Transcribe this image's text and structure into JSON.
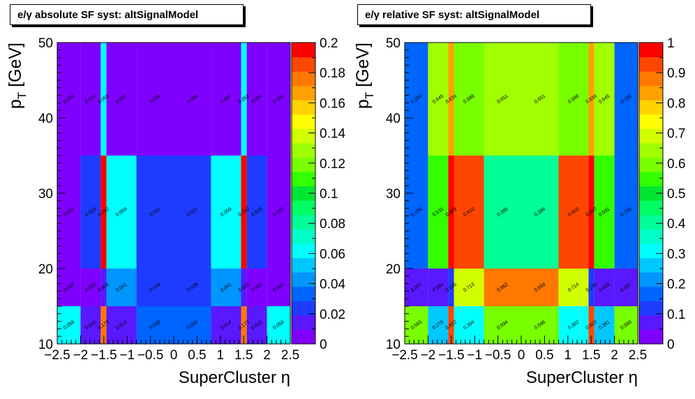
{
  "chart_data": [
    {
      "type": "heatmap",
      "title": "e/γ absolute SF syst: altSignalModel",
      "xlabel": "SuperCluster  η",
      "ylabel": "p_T [GeV]",
      "xlim": [
        -2.5,
        2.5
      ],
      "ylim": [
        10,
        50
      ],
      "zlim": [
        0,
        0.2
      ],
      "x_ticks": [
        "-2.5",
        "-2",
        "-1.5",
        "-1",
        "-0.5",
        "0",
        "0.5",
        "1",
        "1.5",
        "2",
        "2.5"
      ],
      "y_ticks": [
        "10",
        "20",
        "30",
        "40",
        "50"
      ],
      "z_ticks": [
        "0",
        "0.02",
        "0.04",
        "0.06",
        "0.08",
        "0.1",
        "0.12",
        "0.14",
        "0.16",
        "0.18",
        "0.2"
      ],
      "x_edges": [
        -2.5,
        -2.0,
        -1.566,
        -1.4442,
        -0.8,
        0.0,
        0.8,
        1.4442,
        1.566,
        2.0,
        2.5
      ],
      "y_edges": [
        10,
        15,
        20,
        35,
        50
      ],
      "values": [
        [
          0.058,
          0.012,
          0.173,
          0.014,
          0.033,
          0.033,
          0.014,
          0.173,
          0.012,
          0.058
        ],
        [
          0.002,
          0.003,
          0.016,
          0.041,
          0.028,
          0.028,
          0.041,
          0.016,
          0.003,
          0.002
        ],
        [
          0.007,
          0.023,
          0.282,
          0.059,
          0.021,
          0.021,
          0.059,
          0.282,
          0.023,
          0.007
        ],
        [
          0.002,
          0.007,
          0.058,
          0.007,
          0.005,
          0.005,
          0.007,
          0.058,
          0.007,
          0.002
        ]
      ],
      "labels": [
        [
          "0.058",
          "0.012",
          "0.173",
          "0.014",
          "0.033",
          "0.033",
          "0.014",
          "0.173",
          "0.012",
          "0.058"
        ],
        [
          "0.002",
          "0.003",
          "0.016",
          "0.041",
          "0.028",
          "0.028",
          "0.041",
          "0.016",
          "0.003",
          "0.002"
        ],
        [
          "0.007",
          "0.023",
          "0.282",
          "0.059",
          "0.021",
          "0.021",
          "0.059",
          "0.282",
          "0.023",
          "0.007"
        ],
        [
          "0.002",
          "0.007",
          "0.058",
          "0.007",
          "0.005",
          "0.005",
          "0.007",
          "0.058",
          "0.007",
          "0.002"
        ]
      ]
    },
    {
      "type": "heatmap",
      "title": "e/γ relative SF syst: altSignalModel",
      "xlabel": "SuperCluster  η",
      "ylabel": "p_T [GeV]",
      "xlim": [
        -2.5,
        2.5
      ],
      "ylim": [
        10,
        50
      ],
      "zlim": [
        0,
        1
      ],
      "x_ticks": [
        "-2.5",
        "-2",
        "-1.5",
        "-1",
        "-0.5",
        "0",
        "0.5",
        "1",
        "1.5",
        "2",
        "2.5"
      ],
      "y_ticks": [
        "10",
        "20",
        "30",
        "40",
        "50"
      ],
      "z_ticks": [
        "0",
        "0.1",
        "0.2",
        "0.3",
        "0.4",
        "0.5",
        "0.6",
        "0.7",
        "0.8",
        "0.9",
        "1"
      ],
      "x_edges": [
        -2.5,
        -2.0,
        -1.566,
        -1.4442,
        -0.8,
        0.0,
        0.8,
        1.4442,
        1.566,
        2.0,
        2.5
      ],
      "y_edges": [
        10,
        15,
        20,
        35,
        50
      ],
      "values": [
        [
          0.593,
          0.278,
          0.922,
          0.304,
          0.594,
          0.596,
          0.302,
          0.922,
          0.281,
          0.588
        ],
        [
          0.057,
          0.084,
          0.135,
          0.713,
          0.862,
          0.859,
          0.714,
          0.135,
          0.083,
          0.057
        ],
        [
          0.156,
          0.531,
          0.969,
          0.91,
          0.386,
          0.386,
          0.91,
          0.967,
          0.531,
          0.156
        ],
        [
          0.156,
          0.645,
          0.834,
          0.588,
          0.651,
          0.651,
          0.588,
          0.834,
          0.645,
          0.156
        ]
      ],
      "labels": [
        [
          "0.593",
          "0.278",
          "0.922",
          "0.304",
          "0.594",
          "0.596",
          "0.302",
          "0.922",
          "0.281",
          "0.588"
        ],
        [
          "0.057",
          "0.084",
          "0.135",
          "0.713",
          "0.862",
          "0.859",
          "0.714",
          "0.135",
          "0.083",
          "0.057"
        ],
        [
          "0.156",
          "0.531",
          "0.969",
          "0.910",
          "0.386",
          "0.386",
          "0.910",
          "0.967",
          "0.531",
          "0.156"
        ],
        [
          "0.156",
          "0.645",
          "0.834",
          "0.588",
          "0.651",
          "0.651",
          "0.588",
          "0.834",
          "0.645",
          "0.156"
        ]
      ]
    }
  ],
  "palette": [
    "#7f00ff",
    "#5a18ff",
    "#1e3cff",
    "#0064ff",
    "#0096ff",
    "#00c8ff",
    "#00ffff",
    "#00ffc8",
    "#00ff96",
    "#00ff64",
    "#00e632",
    "#32ff00",
    "#78ff00",
    "#a0ff00",
    "#d2ff00",
    "#ffff00",
    "#ffd200",
    "#ffa000",
    "#ff7800",
    "#ff4600",
    "#ff0000"
  ]
}
